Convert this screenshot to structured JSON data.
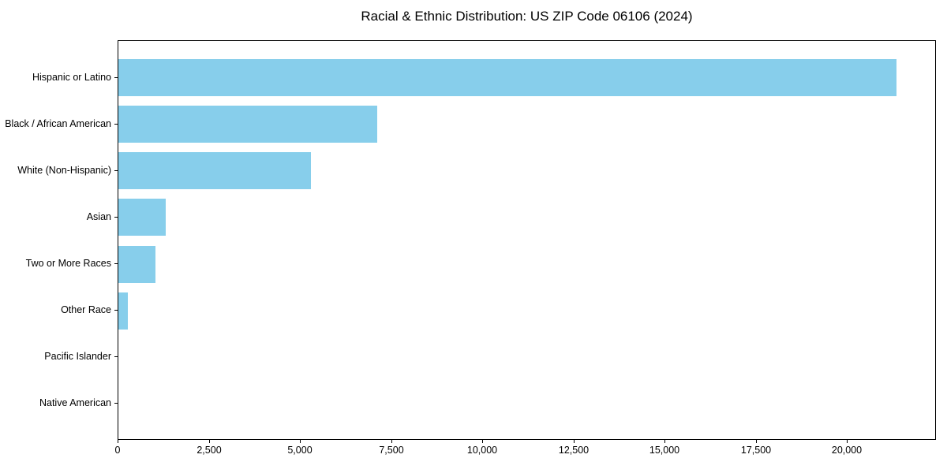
{
  "colors": {
    "background": "#ffffff",
    "bar": "#87CEEB",
    "spine": "#000000",
    "text": "#000000"
  },
  "chart_data": {
    "type": "bar",
    "orientation": "horizontal",
    "title": "Racial & Ethnic Distribution: US ZIP Code 06106 (2024)",
    "categories": [
      "Hispanic or Latino",
      "Black / African American",
      "White (Non-Hispanic)",
      "Asian",
      "Two or More Races",
      "Other Race",
      "Pacific Islander",
      "Native American"
    ],
    "values": [
      21370,
      7120,
      5280,
      1300,
      1020,
      260,
      0,
      0
    ],
    "xlabel": "",
    "ylabel": "",
    "xlim": [
      0,
      22440
    ],
    "x_ticks": [
      0,
      2500,
      5000,
      7500,
      10000,
      12500,
      15000,
      17500,
      20000
    ],
    "x_tick_labels": [
      "0",
      "2,500",
      "5,000",
      "7,500",
      "10,000",
      "12,500",
      "15,000",
      "17,500",
      "20,000"
    ],
    "grid": false,
    "legend": "none",
    "bar_color": "#87CEEB"
  }
}
